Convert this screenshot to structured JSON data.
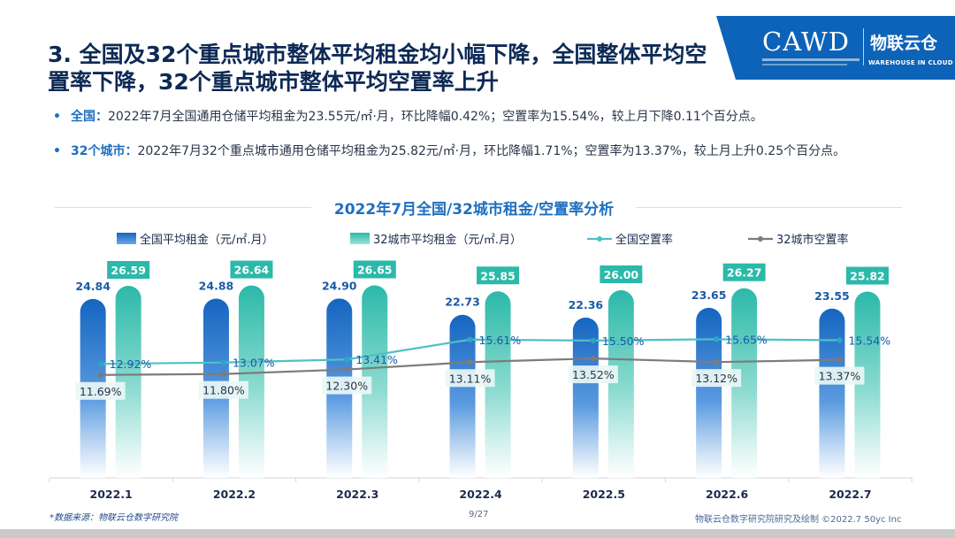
{
  "logo": {
    "cawd": "CAWD",
    "brand": "物联云仓",
    "brand_sub": "WAREHOUSE IN CLOUD"
  },
  "title": "3. 全国及32个重点城市整体平均租金均小幅下降，全国整体平均空置率下降，32个重点城市整体平均空置率上升",
  "bullets": [
    {
      "lead": "全国：",
      "text": "2022年7月全国通用仓储平均租金为23.55元/㎡·月，环比降幅0.42%；空置率为15.54%，较上月下降0.11个百分点。"
    },
    {
      "lead": "32个城市：",
      "text": "2022年7月32个重点城市通用仓储平均租金为25.82元/㎡·月，环比降幅1.71%；空置率为13.37%，较上月上升0.25个百分点。"
    }
  ],
  "chart_data": {
    "type": "bar",
    "title": "2022年7月全国/32城市租金/空置率分析",
    "categories": [
      "2022.1",
      "2022.2",
      "2022.3",
      "2022.4",
      "2022.5",
      "2022.6",
      "2022.7"
    ],
    "series": [
      {
        "name": "全国平均租金（元/㎡.月）",
        "kind": "bar",
        "color": "#1a6fc4",
        "values": [
          24.84,
          24.88,
          24.9,
          22.73,
          22.36,
          23.65,
          23.55
        ],
        "labels": [
          "24.84",
          "24.88",
          "24.90",
          "22.73",
          "22.36",
          "23.65",
          "23.55"
        ]
      },
      {
        "name": "32城市平均租金（元/㎡.月）",
        "kind": "bar",
        "color": "#3fc3b4",
        "values": [
          26.59,
          26.64,
          26.65,
          25.85,
          26.0,
          26.27,
          25.82
        ],
        "labels": [
          "26.59",
          "26.64",
          "26.65",
          "25.85",
          "26.00",
          "26.27",
          "25.82"
        ]
      },
      {
        "name": "全国空置率",
        "kind": "line",
        "color": "#4fc0c6",
        "values": [
          12.92,
          13.07,
          13.41,
          15.61,
          15.5,
          15.65,
          15.54
        ],
        "labels": [
          "12.92%",
          "13.07%",
          "13.41%",
          "15.61%",
          "15.50%",
          "15.65%",
          "15.54%"
        ]
      },
      {
        "name": "32城市空置率",
        "kind": "line",
        "color": "#7c7c7c",
        "values": [
          11.69,
          11.8,
          12.3,
          13.11,
          13.52,
          13.12,
          13.37
        ],
        "labels": [
          "11.69%",
          "11.80%",
          "12.30%",
          "13.11%",
          "13.52%",
          "13.12%",
          "13.37%"
        ]
      }
    ],
    "legend": "top",
    "grid": false
  },
  "footer": {
    "source": "*数据来源：物联云仓数字研究院",
    "page": "9/27",
    "credit": "物联云仓数字研究院研究及绘制    ©2022.7 50yc Inc"
  }
}
